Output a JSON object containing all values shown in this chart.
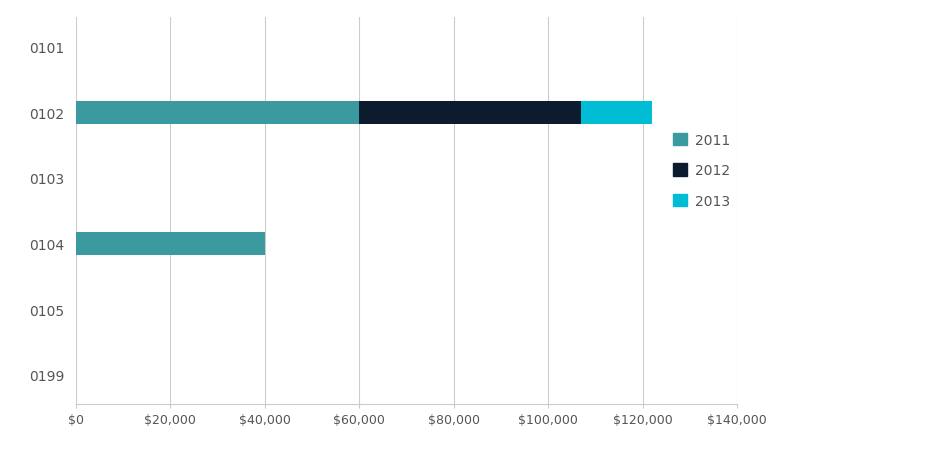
{
  "categories": [
    "0101",
    "0102",
    "0103",
    "0104",
    "0105",
    "0199"
  ],
  "series": {
    "2011": [
      0,
      60000,
      0,
      40000,
      0,
      0
    ],
    "2012": [
      0,
      47000,
      0,
      0,
      0,
      0
    ],
    "2013": [
      0,
      15000,
      0,
      0,
      0,
      0
    ]
  },
  "colors": {
    "2011": "#3a9aa0",
    "2012": "#0d1b2e",
    "2013": "#00bcd4"
  },
  "xlim": [
    0,
    140000
  ],
  "xticks": [
    0,
    20000,
    40000,
    60000,
    80000,
    100000,
    120000,
    140000
  ],
  "bar_height": 0.35,
  "background_color": "#ffffff",
  "grid_color": "#cccccc",
  "legend_labels": [
    "2011",
    "2012",
    "2013"
  ],
  "legend_colors": [
    "#3a9aa0",
    "#0d1b2e",
    "#00bcd4"
  ]
}
